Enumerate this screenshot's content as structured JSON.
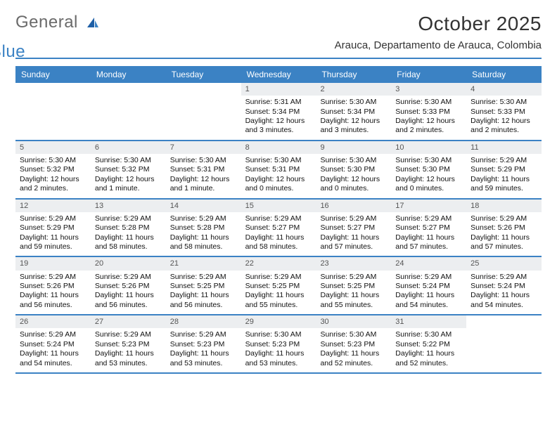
{
  "logo": {
    "general": "General",
    "blue": "Blue"
  },
  "title": "October 2025",
  "location": "Arauca, Departamento de Arauca, Colombia",
  "colors": {
    "accent": "#3b82c4",
    "bar": "#eceef0",
    "text": "#222222"
  },
  "weekdays": [
    "Sunday",
    "Monday",
    "Tuesday",
    "Wednesday",
    "Thursday",
    "Friday",
    "Saturday"
  ],
  "weeks": [
    [
      {
        "n": "",
        "sr": "",
        "ss": "",
        "dl": ""
      },
      {
        "n": "",
        "sr": "",
        "ss": "",
        "dl": ""
      },
      {
        "n": "",
        "sr": "",
        "ss": "",
        "dl": ""
      },
      {
        "n": "1",
        "sr": "Sunrise: 5:31 AM",
        "ss": "Sunset: 5:34 PM",
        "dl": "Daylight: 12 hours and 3 minutes."
      },
      {
        "n": "2",
        "sr": "Sunrise: 5:30 AM",
        "ss": "Sunset: 5:34 PM",
        "dl": "Daylight: 12 hours and 3 minutes."
      },
      {
        "n": "3",
        "sr": "Sunrise: 5:30 AM",
        "ss": "Sunset: 5:33 PM",
        "dl": "Daylight: 12 hours and 2 minutes."
      },
      {
        "n": "4",
        "sr": "Sunrise: 5:30 AM",
        "ss": "Sunset: 5:33 PM",
        "dl": "Daylight: 12 hours and 2 minutes."
      }
    ],
    [
      {
        "n": "5",
        "sr": "Sunrise: 5:30 AM",
        "ss": "Sunset: 5:32 PM",
        "dl": "Daylight: 12 hours and 2 minutes."
      },
      {
        "n": "6",
        "sr": "Sunrise: 5:30 AM",
        "ss": "Sunset: 5:32 PM",
        "dl": "Daylight: 12 hours and 1 minute."
      },
      {
        "n": "7",
        "sr": "Sunrise: 5:30 AM",
        "ss": "Sunset: 5:31 PM",
        "dl": "Daylight: 12 hours and 1 minute."
      },
      {
        "n": "8",
        "sr": "Sunrise: 5:30 AM",
        "ss": "Sunset: 5:31 PM",
        "dl": "Daylight: 12 hours and 0 minutes."
      },
      {
        "n": "9",
        "sr": "Sunrise: 5:30 AM",
        "ss": "Sunset: 5:30 PM",
        "dl": "Daylight: 12 hours and 0 minutes."
      },
      {
        "n": "10",
        "sr": "Sunrise: 5:30 AM",
        "ss": "Sunset: 5:30 PM",
        "dl": "Daylight: 12 hours and 0 minutes."
      },
      {
        "n": "11",
        "sr": "Sunrise: 5:29 AM",
        "ss": "Sunset: 5:29 PM",
        "dl": "Daylight: 11 hours and 59 minutes."
      }
    ],
    [
      {
        "n": "12",
        "sr": "Sunrise: 5:29 AM",
        "ss": "Sunset: 5:29 PM",
        "dl": "Daylight: 11 hours and 59 minutes."
      },
      {
        "n": "13",
        "sr": "Sunrise: 5:29 AM",
        "ss": "Sunset: 5:28 PM",
        "dl": "Daylight: 11 hours and 58 minutes."
      },
      {
        "n": "14",
        "sr": "Sunrise: 5:29 AM",
        "ss": "Sunset: 5:28 PM",
        "dl": "Daylight: 11 hours and 58 minutes."
      },
      {
        "n": "15",
        "sr": "Sunrise: 5:29 AM",
        "ss": "Sunset: 5:27 PM",
        "dl": "Daylight: 11 hours and 58 minutes."
      },
      {
        "n": "16",
        "sr": "Sunrise: 5:29 AM",
        "ss": "Sunset: 5:27 PM",
        "dl": "Daylight: 11 hours and 57 minutes."
      },
      {
        "n": "17",
        "sr": "Sunrise: 5:29 AM",
        "ss": "Sunset: 5:27 PM",
        "dl": "Daylight: 11 hours and 57 minutes."
      },
      {
        "n": "18",
        "sr": "Sunrise: 5:29 AM",
        "ss": "Sunset: 5:26 PM",
        "dl": "Daylight: 11 hours and 57 minutes."
      }
    ],
    [
      {
        "n": "19",
        "sr": "Sunrise: 5:29 AM",
        "ss": "Sunset: 5:26 PM",
        "dl": "Daylight: 11 hours and 56 minutes."
      },
      {
        "n": "20",
        "sr": "Sunrise: 5:29 AM",
        "ss": "Sunset: 5:26 PM",
        "dl": "Daylight: 11 hours and 56 minutes."
      },
      {
        "n": "21",
        "sr": "Sunrise: 5:29 AM",
        "ss": "Sunset: 5:25 PM",
        "dl": "Daylight: 11 hours and 56 minutes."
      },
      {
        "n": "22",
        "sr": "Sunrise: 5:29 AM",
        "ss": "Sunset: 5:25 PM",
        "dl": "Daylight: 11 hours and 55 minutes."
      },
      {
        "n": "23",
        "sr": "Sunrise: 5:29 AM",
        "ss": "Sunset: 5:25 PM",
        "dl": "Daylight: 11 hours and 55 minutes."
      },
      {
        "n": "24",
        "sr": "Sunrise: 5:29 AM",
        "ss": "Sunset: 5:24 PM",
        "dl": "Daylight: 11 hours and 54 minutes."
      },
      {
        "n": "25",
        "sr": "Sunrise: 5:29 AM",
        "ss": "Sunset: 5:24 PM",
        "dl": "Daylight: 11 hours and 54 minutes."
      }
    ],
    [
      {
        "n": "26",
        "sr": "Sunrise: 5:29 AM",
        "ss": "Sunset: 5:24 PM",
        "dl": "Daylight: 11 hours and 54 minutes."
      },
      {
        "n": "27",
        "sr": "Sunrise: 5:29 AM",
        "ss": "Sunset: 5:23 PM",
        "dl": "Daylight: 11 hours and 53 minutes."
      },
      {
        "n": "28",
        "sr": "Sunrise: 5:29 AM",
        "ss": "Sunset: 5:23 PM",
        "dl": "Daylight: 11 hours and 53 minutes."
      },
      {
        "n": "29",
        "sr": "Sunrise: 5:30 AM",
        "ss": "Sunset: 5:23 PM",
        "dl": "Daylight: 11 hours and 53 minutes."
      },
      {
        "n": "30",
        "sr": "Sunrise: 5:30 AM",
        "ss": "Sunset: 5:23 PM",
        "dl": "Daylight: 11 hours and 52 minutes."
      },
      {
        "n": "31",
        "sr": "Sunrise: 5:30 AM",
        "ss": "Sunset: 5:22 PM",
        "dl": "Daylight: 11 hours and 52 minutes."
      },
      {
        "n": "",
        "sr": "",
        "ss": "",
        "dl": ""
      }
    ]
  ]
}
